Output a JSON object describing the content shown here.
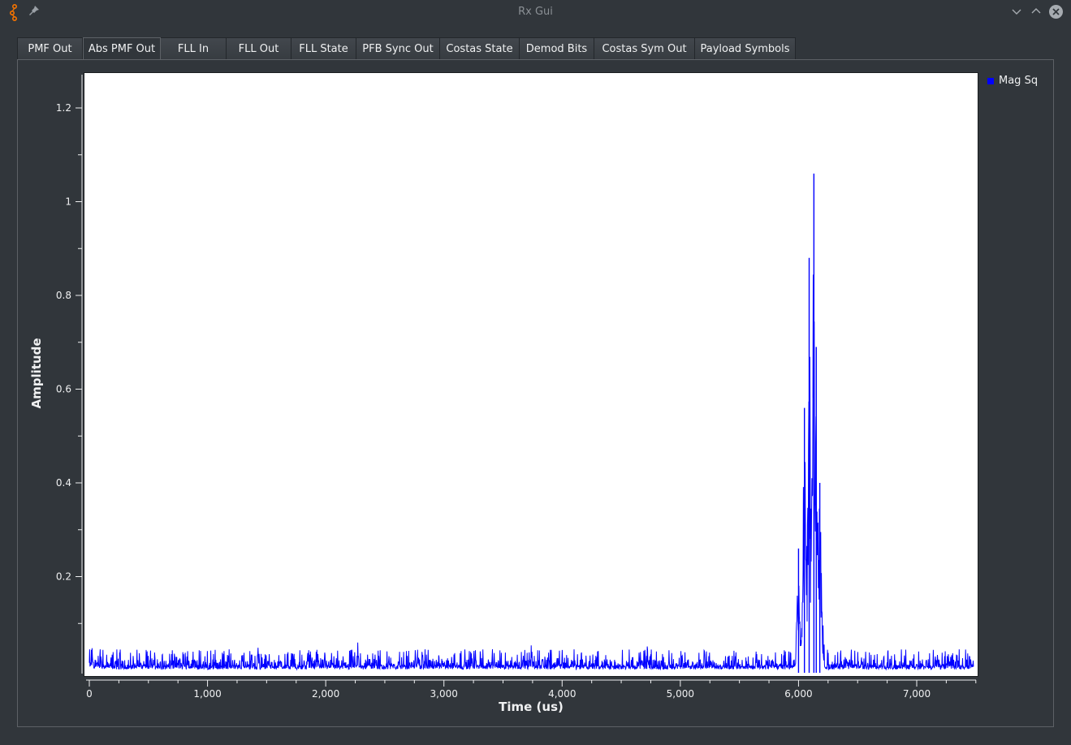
{
  "window": {
    "title": "Rx Gui",
    "accent": "#f67400"
  },
  "tabs": [
    {
      "label": "PMF Out",
      "active": false
    },
    {
      "label": "Abs PMF Out",
      "active": true
    },
    {
      "label": "FLL In",
      "active": false
    },
    {
      "label": "FLL Out",
      "active": false
    },
    {
      "label": "FLL State",
      "active": false
    },
    {
      "label": "PFB Sync Out",
      "active": false
    },
    {
      "label": "Costas State",
      "active": false
    },
    {
      "label": "Demod Bits",
      "active": false
    },
    {
      "label": "Costas  Sym Out",
      "active": false
    },
    {
      "label": "Payload Symbols",
      "active": false
    }
  ],
  "chart_data": {
    "type": "line",
    "title": "",
    "xlabel": "Time (us)",
    "ylabel": "Amplitude",
    "xlim": [
      0,
      7500
    ],
    "ylim": [
      0,
      1.27
    ],
    "x_ticks": [
      0,
      1000,
      2000,
      3000,
      4000,
      5000,
      6000,
      7000
    ],
    "x_tick_labels": [
      "0",
      "1,000",
      "2,000",
      "3,000",
      "4,000",
      "5,000",
      "6,000",
      "7,000"
    ],
    "y_ticks": [
      0.2,
      0.4,
      0.6,
      0.8,
      1,
      1.2
    ],
    "y_tick_labels": [
      "0.2",
      "0.4",
      "0.6",
      "0.8",
      "1",
      "1.2"
    ],
    "legend": {
      "position": "right",
      "entries": [
        "Mag Sq"
      ]
    },
    "series": [
      {
        "name": "Mag Sq",
        "color": "#0000ff",
        "noise_floor": 0.01,
        "noise_peak": 0.045,
        "peaks": [
          {
            "x": 20,
            "y": 0.065
          },
          {
            "x": 700,
            "y": 0.07
          },
          {
            "x": 1430,
            "y": 0.085
          },
          {
            "x": 1850,
            "y": 0.068
          },
          {
            "x": 2270,
            "y": 0.065
          },
          {
            "x": 3740,
            "y": 0.065
          },
          {
            "x": 4720,
            "y": 0.065
          },
          {
            "x": 6000,
            "y": 0.26
          },
          {
            "x": 6050,
            "y": 0.56
          },
          {
            "x": 6090,
            "y": 0.88
          },
          {
            "x": 6130,
            "y": 1.06
          },
          {
            "x": 6150,
            "y": 0.69
          },
          {
            "x": 6180,
            "y": 0.4
          },
          {
            "x": 6210,
            "y": 0.16
          }
        ]
      }
    ]
  }
}
